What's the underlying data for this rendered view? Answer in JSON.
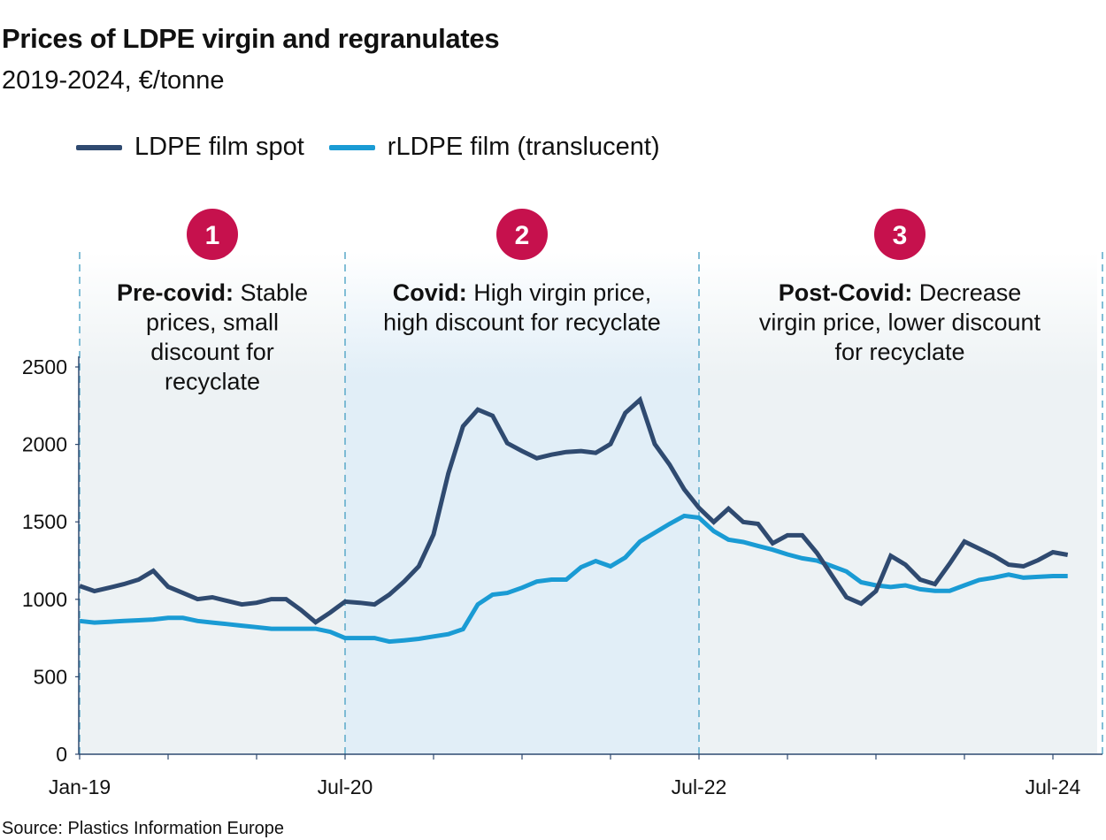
{
  "title": "Prices of LDPE virgin and regranulates",
  "subtitle": "2019-2024, €/tonne",
  "source": "Source: Plastics Information Europe",
  "colors": {
    "ldpe": "#2f4a70",
    "rldpe": "#1a9bd4",
    "badge": "#c6114d",
    "region_a": "#edf2f4",
    "region_b": "#e1eef7",
    "divider": "#5aa9c9"
  },
  "annotations": [
    {
      "number": "1",
      "bold": "Pre-covid:",
      "lines": [
        " Stable",
        "prices, small",
        "discount for",
        "recyclate"
      ]
    },
    {
      "number": "2",
      "bold": "Covid:",
      "lines": [
        " High virgin price,",
        "high discount for recyclate"
      ]
    },
    {
      "number": "3",
      "bold": "Post-Covid:",
      "lines": [
        " Decrease",
        "virgin price, lower discount",
        "for recyclate"
      ]
    }
  ],
  "chart_data": {
    "type": "line",
    "title": "Prices of LDPE virgin and regranulates",
    "subtitle": "2019-2024, €/tonne",
    "xlabel": "",
    "ylabel": "",
    "ylim": [
      0,
      2500
    ],
    "yticks": [
      "0",
      "500",
      "1000",
      "1500",
      "2000",
      "2500"
    ],
    "xtick_labels": [
      "Jan-19",
      "Jul-20",
      "Jul-22",
      "Jul-24"
    ],
    "grid": false,
    "legend": "top-left",
    "regions": [
      {
        "from": "2019-01",
        "to": "2020-07"
      },
      {
        "from": "2020-07",
        "to": "2022-07"
      },
      {
        "from": "2022-07",
        "to": "2024-10"
      }
    ],
    "x": [
      "2019-01",
      "2019-02",
      "2019-03",
      "2019-04",
      "2019-05",
      "2019-06",
      "2019-07",
      "2019-08",
      "2019-09",
      "2019-10",
      "2019-11",
      "2019-12",
      "2020-01",
      "2020-02",
      "2020-03",
      "2020-04",
      "2020-05",
      "2020-06",
      "2020-07",
      "2020-08",
      "2020-09",
      "2020-10",
      "2020-11",
      "2020-12",
      "2021-01",
      "2021-02",
      "2021-03",
      "2021-04",
      "2021-05",
      "2021-06",
      "2021-07",
      "2021-08",
      "2021-09",
      "2021-10",
      "2021-11",
      "2021-12",
      "2022-01",
      "2022-02",
      "2022-03",
      "2022-04",
      "2022-05",
      "2022-06",
      "2022-07",
      "2022-08",
      "2022-09",
      "2022-10",
      "2022-11",
      "2022-12",
      "2023-01",
      "2023-02",
      "2023-03",
      "2023-04",
      "2023-05",
      "2023-06",
      "2023-07",
      "2023-08",
      "2023-09",
      "2023-10",
      "2023-11",
      "2023-12",
      "2024-01",
      "2024-02",
      "2024-03",
      "2024-04",
      "2024-05",
      "2024-06",
      "2024-07",
      "2024-08"
    ],
    "series": [
      {
        "name": "LDPE film spot",
        "values": [
          1087,
          1053,
          1075,
          1098,
          1127,
          1184,
          1081,
          1041,
          1001,
          1013,
          990,
          967,
          978,
          1001,
          1001,
          932,
          852,
          915,
          985,
          978,
          967,
          1030,
          1115,
          1213,
          1419,
          1813,
          2117,
          2225,
          2185,
          2008,
          1957,
          1911,
          1934,
          1951,
          1957,
          1945,
          2002,
          2203,
          2288,
          2002,
          1870,
          1710,
          1590,
          1499,
          1585,
          1499,
          1487,
          1362,
          1413,
          1413,
          1299,
          1156,
          1013,
          972,
          1053,
          1281,
          1224,
          1127,
          1098,
          1230,
          1373,
          1327,
          1281,
          1224,
          1213,
          1253,
          1304,
          1287
        ]
      },
      {
        "name": "rLDPE film (translucent)",
        "values": [
          860,
          850,
          855,
          860,
          865,
          870,
          880,
          880,
          860,
          850,
          840,
          830,
          820,
          810,
          810,
          810,
          810,
          790,
          750,
          750,
          750,
          727,
          735,
          745,
          760,
          775,
          807,
          967,
          1030,
          1041,
          1075,
          1115,
          1127,
          1127,
          1207,
          1247,
          1213,
          1270,
          1373,
          1430,
          1487,
          1539,
          1527,
          1440,
          1385,
          1370,
          1345,
          1320,
          1290,
          1265,
          1250,
          1215,
          1180,
          1110,
          1090,
          1080,
          1090,
          1065,
          1055,
          1055,
          1090,
          1125,
          1140,
          1160,
          1140,
          1145,
          1150,
          1150
        ]
      }
    ]
  }
}
